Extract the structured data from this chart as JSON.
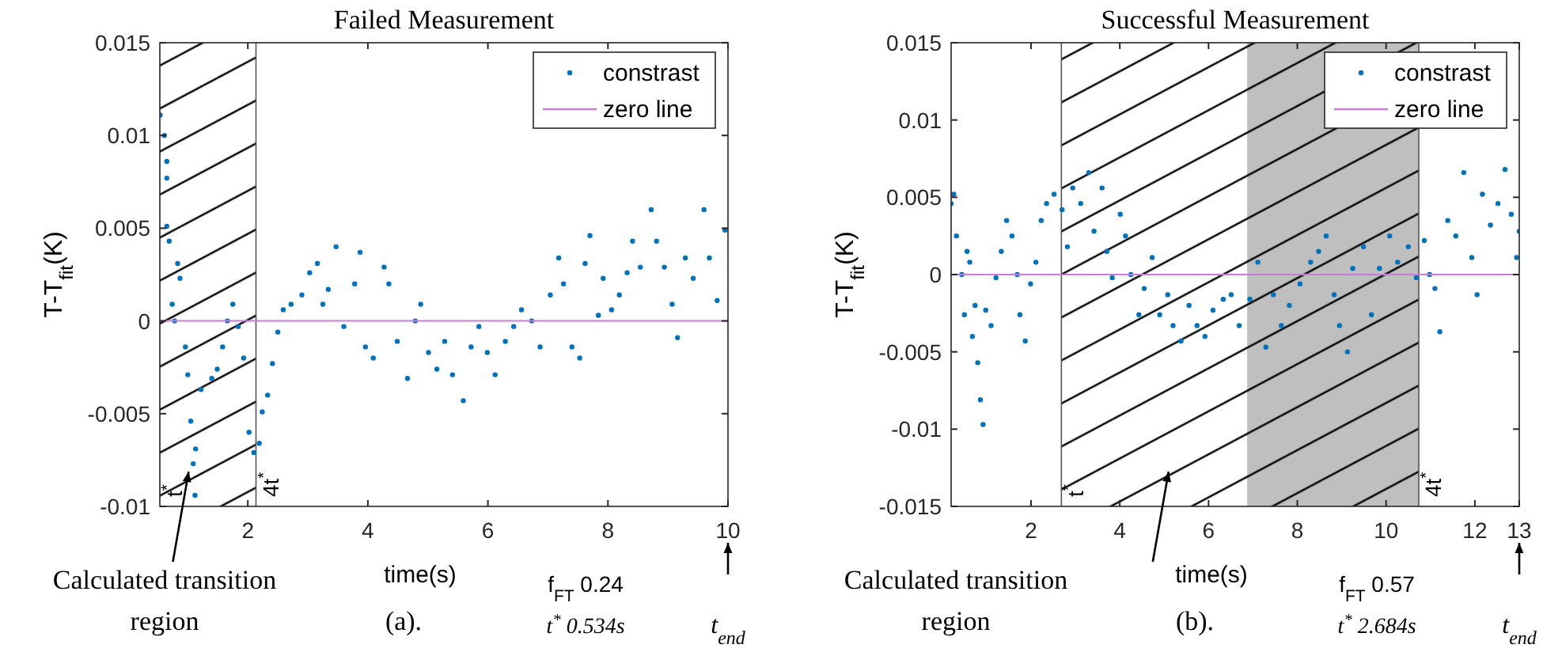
{
  "chart_data": [
    {
      "type": "scatter",
      "title": "Failed Measurement",
      "xlabel": "time(s)",
      "ylabel": "T-T$_{fit}$(K)",
      "xlim": [
        0.534,
        10
      ],
      "ylim": [
        -0.01,
        0.015
      ],
      "xticks": [
        2,
        4,
        6,
        8,
        10
      ],
      "yticks": [
        -0.01,
        -0.005,
        0,
        0.005,
        0.01,
        0.015
      ],
      "legend": "top right",
      "ref_lines": [
        {
          "axis": "x",
          "value": 2.136,
          "color": "#555555"
        }
      ],
      "series": [
        {
          "name": "constrast",
          "color": "#0072bd",
          "marker": "circle",
          "x": [
            0.54,
            0.61,
            0.65,
            0.65,
            0.65,
            0.69,
            0.74,
            0.78,
            0.83,
            0.87,
            0.96,
            1.0,
            1.05,
            1.09,
            1.12,
            1.13,
            1.22,
            1.4,
            1.49,
            1.58,
            1.66,
            1.75,
            1.84,
            1.93,
            2.02,
            2.1,
            2.19,
            2.24,
            2.33,
            2.41,
            2.5,
            2.59,
            2.72,
            2.9,
            3.03,
            3.16,
            3.25,
            3.34,
            3.47,
            3.6,
            3.78,
            3.87,
            3.96,
            4.09,
            4.27,
            4.35,
            4.49,
            4.66,
            4.79,
            4.88,
            5.01,
            5.15,
            5.28,
            5.41,
            5.59,
            5.72,
            5.85,
            5.99,
            6.12,
            6.29,
            6.43,
            6.56,
            6.73,
            6.87,
            7.04,
            7.18,
            7.26,
            7.4,
            7.53,
            7.62,
            7.7,
            7.84,
            7.92,
            8.06,
            8.19,
            8.32,
            8.41,
            8.54,
            8.72,
            8.81,
            8.94,
            9.07,
            9.16,
            9.29,
            9.42,
            9.6,
            9.69,
            9.82,
            9.95
          ],
          "values": [
            0.0111,
            0.01,
            0.0086,
            0.0077,
            0.0051,
            0.0043,
            0.0009,
            0,
            0.0031,
            0.0023,
            -0.0014,
            -0.0029,
            -0.0054,
            -0.0077,
            -0.0094,
            -0.0069,
            -0.0037,
            -0.0031,
            -0.0026,
            -0.0014,
            0,
            0.0009,
            -0.0003,
            -0.002,
            -0.006,
            -0.0071,
            -0.0066,
            -0.0049,
            -0.004,
            -0.0023,
            -0.0006,
            0.0006,
            0.0009,
            0.0014,
            0.0026,
            0.0031,
            0.0009,
            0.0017,
            0.004,
            -0.0003,
            0.002,
            0.0037,
            -0.0014,
            -0.002,
            0.0029,
            0.002,
            -0.0011,
            -0.0031,
            0,
            0.0009,
            -0.0017,
            -0.0026,
            -0.0011,
            -0.0029,
            -0.0043,
            -0.0014,
            -0.0003,
            -0.0017,
            -0.0029,
            -0.0011,
            -0.0003,
            0.0006,
            0,
            -0.0014,
            0.0014,
            0.0034,
            0.002,
            -0.0014,
            -0.002,
            0.0031,
            0.0046,
            0.0003,
            0.0023,
            0.0006,
            0.0014,
            0.0026,
            0.0043,
            0.0029,
            0.006,
            0.0043,
            0.0029,
            0.0009,
            -0.0009,
            0.0034,
            0.0023,
            0.006,
            0.0034,
            0.0011,
            0.0049
          ]
        },
        {
          "name": "zero line",
          "type": "line",
          "color": "#c77fd6",
          "marker": "none",
          "x": [
            0.534,
            10
          ],
          "values": [
            0,
            0
          ]
        }
      ],
      "bands": [
        {
          "axis": "x",
          "from": 0.534,
          "to": 2.136
        }
      ],
      "annotations": [
        {
          "text": "t$^{*}$",
          "x": 0.534,
          "y": -0.01
        },
        {
          "text": "4t$^{*}$",
          "x": 2.136,
          "y": -0.01
        },
        "Calculated transition region",
        "(a).",
        "f$_{FT}$ 0.24",
        "t$^{*}$ 0.534s",
        "t$_{end}$"
      ]
    },
    {
      "type": "scatter",
      "title": "Successful Measurement",
      "xlabel": "time(s)",
      "ylabel": "T-T$_{fit}$(K)",
      "xlim": [
        0.2,
        13
      ],
      "ylim": [
        -0.015,
        0.015
      ],
      "xticks": [
        2,
        4,
        6,
        8,
        10,
        12,
        13
      ],
      "yticks": [
        -0.015,
        -0.01,
        -0.005,
        0,
        0.005,
        0.01,
        0.015
      ],
      "legend": "top right",
      "ref_lines": [
        {
          "axis": "x",
          "value": 2.684,
          "color": "#555555"
        },
        {
          "axis": "x",
          "value": 10.736,
          "color": "#555555"
        }
      ],
      "series": [
        {
          "name": "constrast",
          "color": "#0072bd",
          "marker": "circle",
          "x": [
            0.2,
            0.26,
            0.32,
            0.44,
            0.5,
            0.56,
            0.62,
            0.68,
            0.74,
            0.8,
            0.86,
            0.92,
            0.98,
            1.1,
            1.21,
            1.33,
            1.45,
            1.57,
            1.69,
            1.75,
            1.87,
            1.99,
            2.11,
            2.23,
            2.35,
            2.52,
            2.7,
            2.82,
            2.94,
            3.12,
            3.3,
            3.42,
            3.6,
            3.71,
            3.83,
            4.01,
            4.13,
            4.25,
            4.43,
            4.55,
            4.73,
            4.9,
            5.08,
            5.2,
            5.38,
            5.56,
            5.74,
            5.92,
            6.1,
            6.33,
            6.51,
            6.69,
            6.93,
            7.11,
            7.29,
            7.46,
            7.64,
            7.82,
            8.06,
            8.3,
            8.48,
            8.65,
            8.83,
            8.95,
            9.13,
            9.25,
            9.49,
            9.67,
            9.85,
            10.08,
            10.26,
            10.5,
            10.68,
            10.86,
            10.98,
            11.1,
            11.21,
            11.39,
            11.57,
            11.75,
            11.93,
            12.05,
            12.17,
            12.35,
            12.52,
            12.68,
            12.82,
            12.94,
            13.0
          ],
          "values": [
            0.0046,
            0.0052,
            0.0025,
            0,
            -0.0026,
            0.0015,
            0.0008,
            -0.004,
            -0.002,
            -0.0057,
            -0.0081,
            -0.0097,
            -0.0023,
            -0.0033,
            -0.0002,
            0.0015,
            0.0035,
            0.0025,
            0,
            -0.0026,
            -0.0043,
            -0.0006,
            0.0008,
            0.0035,
            0.0046,
            0.0052,
            0.0042,
            0.0018,
            0.0056,
            0.0046,
            0.0066,
            0.0028,
            0.0056,
            0.0015,
            -0.0002,
            0.0039,
            0.0025,
            0,
            -0.0026,
            -0.0009,
            0.0011,
            -0.0026,
            -0.0013,
            -0.0033,
            -0.0043,
            -0.002,
            -0.0033,
            -0.004,
            -0.0023,
            -0.0016,
            -0.0013,
            -0.0033,
            -0.0016,
            0.0008,
            -0.0047,
            -0.0013,
            -0.0033,
            -0.002,
            -0.0006,
            0.0008,
            0.0015,
            0.0025,
            -0.0013,
            -0.0033,
            -0.005,
            0.0004,
            0.0018,
            -0.0026,
            0.0004,
            0.0025,
            0.0008,
            0.0018,
            -0.0002,
            0.0022,
            0,
            -0.0009,
            -0.0037,
            0.0035,
            0.0025,
            0.0066,
            0.0011,
            -0.0013,
            0.0052,
            0.0032,
            0.0046,
            0.0068,
            0.0039,
            0.0011,
            0.0028
          ]
        },
        {
          "name": "zero line",
          "type": "line",
          "color": "#c77fd6",
          "marker": "none",
          "x": [
            0.2,
            13
          ],
          "values": [
            0,
            0
          ]
        }
      ],
      "bands": [
        {
          "axis": "x",
          "from": 2.684,
          "to": 10.736
        },
        {
          "axis": "x",
          "from": 6.87,
          "to": 10.736,
          "color": "#bfbfbf"
        }
      ],
      "annotations": [
        {
          "text": "t$^{*}$",
          "x": 2.684,
          "y": -0.015
        },
        {
          "text": "4t$^{*}$",
          "x": 10.736,
          "y": -0.015
        },
        "Calculated transition region",
        "(b).",
        "f$_{FT}$ 0.57",
        "t$^{*}$ 2.684s",
        "t$_{end}$"
      ]
    }
  ]
}
